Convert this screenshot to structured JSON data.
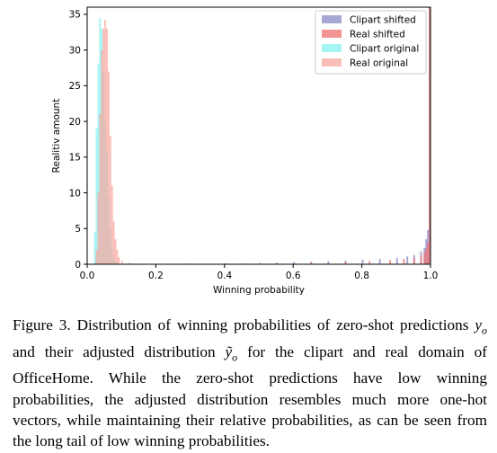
{
  "chart_data": {
    "type": "histogram",
    "xlabel": "Winning probability",
    "ylabel": "Realitiv amount",
    "xlim": [
      0.0,
      1.0
    ],
    "ylim": [
      0,
      36
    ],
    "xticks": [
      0.0,
      0.2,
      0.4,
      0.6,
      0.8,
      1.0
    ],
    "xtick_labels": [
      "0.0",
      "0.2",
      "0.4",
      "0.6",
      "0.8",
      "1.0"
    ],
    "yticks": [
      0,
      5,
      10,
      15,
      20,
      25,
      30,
      35
    ],
    "ytick_labels": [
      "0",
      "5",
      "10",
      "15",
      "20",
      "25",
      "30",
      "35"
    ],
    "grid": false,
    "legend_position": "top-right",
    "bin_width": 0.005,
    "series": [
      {
        "name": "Clipart shifted",
        "color": "#8a8ac8",
        "bins": [
          {
            "x": 0.2,
            "y": 0.05
          },
          {
            "x": 0.3,
            "y": 0.08
          },
          {
            "x": 0.4,
            "y": 0.12
          },
          {
            "x": 0.5,
            "y": 0.18
          },
          {
            "x": 0.55,
            "y": 0.22
          },
          {
            "x": 0.6,
            "y": 0.3
          },
          {
            "x": 0.65,
            "y": 0.35
          },
          {
            "x": 0.7,
            "y": 0.42
          },
          {
            "x": 0.75,
            "y": 0.5
          },
          {
            "x": 0.8,
            "y": 0.65
          },
          {
            "x": 0.85,
            "y": 0.75
          },
          {
            "x": 0.9,
            "y": 0.9
          },
          {
            "x": 0.93,
            "y": 1.1
          },
          {
            "x": 0.95,
            "y": 1.3
          },
          {
            "x": 0.97,
            "y": 1.8
          },
          {
            "x": 0.98,
            "y": 2.3
          },
          {
            "x": 0.985,
            "y": 3.5
          },
          {
            "x": 0.99,
            "y": 4.8
          },
          {
            "x": 0.995,
            "y": 36
          }
        ]
      },
      {
        "name": "Real shifted",
        "color": "#f07070",
        "bins": [
          {
            "x": 0.3,
            "y": 0.06
          },
          {
            "x": 0.45,
            "y": 0.1
          },
          {
            "x": 0.55,
            "y": 0.15
          },
          {
            "x": 0.65,
            "y": 0.22
          },
          {
            "x": 0.75,
            "y": 0.3
          },
          {
            "x": 0.82,
            "y": 0.45
          },
          {
            "x": 0.88,
            "y": 0.6
          },
          {
            "x": 0.92,
            "y": 0.75
          },
          {
            "x": 0.95,
            "y": 0.9
          },
          {
            "x": 0.97,
            "y": 1.2
          },
          {
            "x": 0.98,
            "y": 1.6
          },
          {
            "x": 0.985,
            "y": 2.2
          },
          {
            "x": 0.99,
            "y": 3.0
          },
          {
            "x": 0.995,
            "y": 36
          }
        ]
      },
      {
        "name": "Clipart original",
        "color": "#88f2f2",
        "bins": [
          {
            "x": 0.02,
            "y": 4.5
          },
          {
            "x": 0.025,
            "y": 19.0
          },
          {
            "x": 0.03,
            "y": 28.0
          },
          {
            "x": 0.035,
            "y": 34.5
          },
          {
            "x": 0.04,
            "y": 33.0
          },
          {
            "x": 0.045,
            "y": 27.0
          },
          {
            "x": 0.05,
            "y": 20.0
          },
          {
            "x": 0.055,
            "y": 16.0
          },
          {
            "x": 0.06,
            "y": 9.5
          },
          {
            "x": 0.065,
            "y": 5.0
          },
          {
            "x": 0.07,
            "y": 2.5
          },
          {
            "x": 0.075,
            "y": 1.0
          },
          {
            "x": 0.08,
            "y": 0.4
          }
        ]
      },
      {
        "name": "Real original",
        "color": "#f7a8a0",
        "bins": [
          {
            "x": 0.025,
            "y": 2.0
          },
          {
            "x": 0.03,
            "y": 10.0
          },
          {
            "x": 0.035,
            "y": 21.0
          },
          {
            "x": 0.04,
            "y": 30.0
          },
          {
            "x": 0.045,
            "y": 33.0
          },
          {
            "x": 0.05,
            "y": 34.2
          },
          {
            "x": 0.055,
            "y": 33.0
          },
          {
            "x": 0.06,
            "y": 27.0
          },
          {
            "x": 0.065,
            "y": 18.0
          },
          {
            "x": 0.07,
            "y": 11.0
          },
          {
            "x": 0.075,
            "y": 6.0
          },
          {
            "x": 0.08,
            "y": 3.5
          },
          {
            "x": 0.085,
            "y": 2.0
          },
          {
            "x": 0.09,
            "y": 1.0
          },
          {
            "x": 0.1,
            "y": 0.5
          },
          {
            "x": 0.12,
            "y": 0.2
          }
        ]
      }
    ]
  },
  "caption": {
    "label": "Figure 3.",
    "part1": " Distribution of winning probabilities of zero-shot predictions ",
    "y_symbol": "y",
    "y_sub": "o",
    "part2": " and their adjusted distribution ",
    "ytilde_symbol": "ỹ",
    "ytilde_sub": "o",
    "part3": " for the clipart and real domain of OfficeHome. While the zero-shot predictions have low winning probabilities, the adjusted distribution resembles much more one-hot vectors, while maintaining their relative probabilities, as can be seen from the long tail of low winning probabilities."
  }
}
